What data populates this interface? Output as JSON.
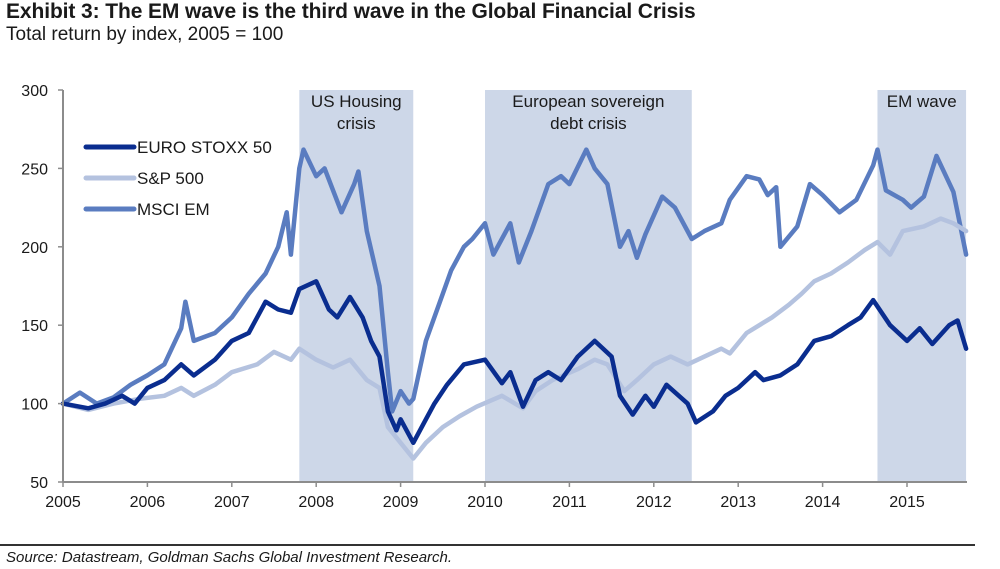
{
  "header": {
    "title": "Exhibit 3: The EM wave is the third wave in the Global Financial Crisis",
    "subtitle": "Total return by index, 2005 = 100"
  },
  "footer": {
    "source": "Source: Datastream, Goldman Sachs Global Investment Research."
  },
  "colors": {
    "band": "#cdd7e8",
    "axis": "#8c8c8c",
    "euro_stoxx": "#0a2d8f",
    "sp500": "#b4c2df",
    "msci_em": "#5a7cc0"
  },
  "chart_data": {
    "type": "line",
    "title": "Exhibit 3: The EM wave is the third wave in the Global Financial Crisis",
    "subtitle": "Total return by index, 2005 = 100",
    "xlabel": "",
    "ylabel": "",
    "xlim": [
      2005,
      2015.7
    ],
    "ylim": [
      50,
      300
    ],
    "x_ticks": [
      "2005",
      "2006",
      "2007",
      "2008",
      "2009",
      "2010",
      "2011",
      "2012",
      "2013",
      "2014",
      "2015"
    ],
    "y_ticks": [
      "50",
      "100",
      "150",
      "200",
      "250",
      "300"
    ],
    "grid": false,
    "legend_position": "top-left",
    "shaded_periods": [
      {
        "label": [
          "US Housing",
          "crisis"
        ],
        "start": 2007.8,
        "end": 2009.15
      },
      {
        "label": [
          "European sovereign",
          "debt crisis"
        ],
        "start": 2010.0,
        "end": 2012.45
      },
      {
        "label": [
          "EM wave"
        ],
        "start": 2014.65,
        "end": 2015.7
      }
    ],
    "series": [
      {
        "name": "MSCI EM",
        "color": "#5a7cc0",
        "x": [
          2005.0,
          2005.2,
          2005.4,
          2005.6,
          2005.8,
          2006.0,
          2006.2,
          2006.4,
          2006.45,
          2006.55,
          2006.8,
          2007.0,
          2007.2,
          2007.4,
          2007.55,
          2007.65,
          2007.7,
          2007.8,
          2007.85,
          2008.0,
          2008.1,
          2008.3,
          2008.45,
          2008.5,
          2008.6,
          2008.75,
          2008.85,
          2008.9,
          2009.0,
          2009.1,
          2009.15,
          2009.3,
          2009.5,
          2009.6,
          2009.75,
          2009.85,
          2010.0,
          2010.1,
          2010.3,
          2010.4,
          2010.55,
          2010.75,
          2010.9,
          2011.0,
          2011.2,
          2011.3,
          2011.45,
          2011.6,
          2011.7,
          2011.8,
          2011.9,
          2012.1,
          2012.25,
          2012.45,
          2012.6,
          2012.8,
          2012.9,
          2013.1,
          2013.25,
          2013.35,
          2013.45,
          2013.5,
          2013.7,
          2013.85,
          2014.0,
          2014.2,
          2014.4,
          2014.6,
          2014.65,
          2014.75,
          2014.95,
          2015.05,
          2015.2,
          2015.35,
          2015.55,
          2015.7
        ],
        "values": [
          100,
          107,
          100,
          104,
          112,
          118,
          125,
          148,
          165,
          140,
          145,
          155,
          170,
          183,
          200,
          222,
          195,
          250,
          262,
          245,
          250,
          222,
          240,
          248,
          210,
          175,
          120,
          95,
          108,
          100,
          103,
          140,
          170,
          185,
          200,
          205,
          215,
          195,
          215,
          190,
          210,
          240,
          245,
          240,
          262,
          250,
          240,
          200,
          210,
          193,
          208,
          232,
          225,
          205,
          210,
          215,
          230,
          245,
          243,
          233,
          238,
          200,
          213,
          240,
          233,
          222,
          230,
          252,
          262,
          236,
          230,
          225,
          232,
          258,
          235,
          195
        ]
      },
      {
        "name": "S&P 500",
        "color": "#b4c2df",
        "x": [
          2005.0,
          2005.3,
          2005.6,
          2005.9,
          2006.2,
          2006.4,
          2006.55,
          2006.8,
          2007.0,
          2007.3,
          2007.5,
          2007.7,
          2007.8,
          2008.0,
          2008.2,
          2008.4,
          2008.6,
          2008.75,
          2008.85,
          2009.0,
          2009.15,
          2009.3,
          2009.5,
          2009.7,
          2009.9,
          2010.2,
          2010.45,
          2010.6,
          2010.8,
          2011.1,
          2011.3,
          2011.45,
          2011.65,
          2011.8,
          2012.0,
          2012.2,
          2012.4,
          2012.6,
          2012.8,
          2012.9,
          2013.1,
          2013.4,
          2013.6,
          2013.75,
          2013.9,
          2014.1,
          2014.3,
          2014.5,
          2014.65,
          2014.8,
          2014.95,
          2015.2,
          2015.4,
          2015.55,
          2015.7
        ],
        "values": [
          100,
          96,
          100,
          103,
          105,
          110,
          105,
          112,
          120,
          125,
          133,
          128,
          135,
          128,
          123,
          128,
          115,
          110,
          85,
          75,
          65,
          75,
          85,
          92,
          98,
          105,
          97,
          108,
          115,
          122,
          128,
          125,
          108,
          115,
          125,
          130,
          125,
          130,
          135,
          132,
          145,
          155,
          163,
          170,
          178,
          183,
          190,
          198,
          203,
          195,
          210,
          213,
          218,
          215,
          210
        ]
      },
      {
        "name": "EURO STOXX 50",
        "color": "#0a2d8f",
        "x": [
          2005.0,
          2005.3,
          2005.5,
          2005.7,
          2005.85,
          2006.0,
          2006.2,
          2006.4,
          2006.55,
          2006.8,
          2007.0,
          2007.2,
          2007.4,
          2007.55,
          2007.7,
          2007.8,
          2008.0,
          2008.15,
          2008.25,
          2008.4,
          2008.55,
          2008.65,
          2008.75,
          2008.85,
          2008.95,
          2009.0,
          2009.15,
          2009.3,
          2009.4,
          2009.55,
          2009.75,
          2010.0,
          2010.2,
          2010.3,
          2010.45,
          2010.6,
          2010.75,
          2010.9,
          2011.1,
          2011.3,
          2011.5,
          2011.6,
          2011.75,
          2011.9,
          2012.0,
          2012.15,
          2012.4,
          2012.5,
          2012.7,
          2012.85,
          2013.0,
          2013.2,
          2013.3,
          2013.5,
          2013.7,
          2013.9,
          2014.1,
          2014.3,
          2014.45,
          2014.6,
          2014.8,
          2015.0,
          2015.15,
          2015.3,
          2015.5,
          2015.6,
          2015.7
        ],
        "values": [
          100,
          97,
          100,
          105,
          100,
          110,
          115,
          125,
          118,
          128,
          140,
          145,
          165,
          160,
          158,
          173,
          178,
          160,
          155,
          168,
          155,
          140,
          130,
          95,
          83,
          90,
          75,
          90,
          100,
          112,
          125,
          128,
          113,
          120,
          98,
          115,
          120,
          115,
          130,
          140,
          130,
          105,
          93,
          105,
          98,
          112,
          100,
          88,
          95,
          105,
          110,
          120,
          115,
          118,
          125,
          140,
          143,
          150,
          155,
          166,
          150,
          140,
          148,
          138,
          150,
          153,
          135
        ]
      }
    ]
  }
}
